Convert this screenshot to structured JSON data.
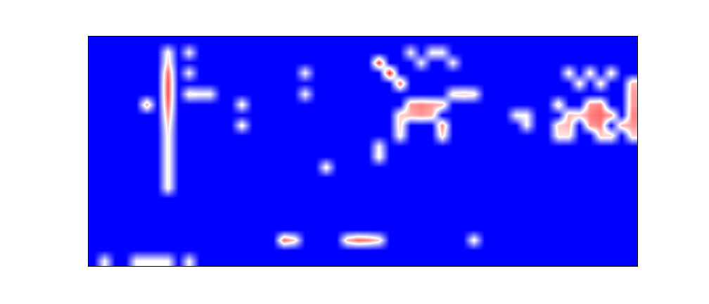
{
  "chart_data": {
    "type": "heatmap",
    "tick_labels": false,
    "grid": false,
    "zlim": [
      0,
      1
    ],
    "z": [
      [
        0,
        0,
        0,
        0,
        0,
        0,
        0,
        0,
        0,
        0,
        0,
        0,
        0,
        0,
        0,
        0,
        0,
        0,
        0,
        0,
        0,
        0,
        0,
        0,
        0,
        0,
        0,
        0,
        0,
        0,
        0,
        0,
        0,
        0,
        0,
        0,
        0,
        0,
        0,
        0,
        0,
        0,
        0,
        0,
        0,
        0,
        0,
        0,
        0,
        0,
        0,
        0
      ],
      [
        0,
        0,
        0,
        0,
        0,
        0,
        0,
        0.55,
        0,
        0.5,
        0,
        0,
        0,
        0,
        0,
        0,
        0,
        0,
        0,
        0,
        0,
        0,
        0,
        0,
        0,
        0,
        0,
        0,
        0,
        0,
        0.5,
        0,
        0.5,
        0.5,
        0,
        0,
        0,
        0,
        0,
        0,
        0,
        0,
        0,
        0,
        0,
        0,
        0,
        0,
        0,
        0,
        0,
        0
      ],
      [
        0,
        0,
        0,
        0,
        0,
        0,
        0,
        0.6,
        0,
        0,
        0,
        0,
        0,
        0,
        0,
        0,
        0,
        0,
        0,
        0,
        0,
        0,
        0,
        0,
        0,
        0,
        0,
        0.9,
        0,
        0,
        0,
        0.5,
        0,
        0,
        0.5,
        0,
        0,
        0,
        0,
        0,
        0,
        0,
        0,
        0,
        0,
        0,
        0,
        0,
        0,
        0,
        0,
        0
      ],
      [
        0,
        0,
        0,
        0,
        0,
        0,
        0,
        0.8,
        0,
        0.5,
        0,
        0,
        0,
        0,
        0,
        0,
        0,
        0,
        0,
        0,
        0.5,
        0,
        0,
        0,
        0,
        0,
        0,
        0,
        0.95,
        0,
        0,
        0,
        0,
        0,
        0,
        0,
        0,
        0,
        0,
        0,
        0,
        0,
        0,
        0,
        0,
        0.55,
        0,
        0.55,
        0,
        0.55,
        0,
        0
      ],
      [
        0,
        0,
        0,
        0,
        0,
        0,
        0,
        0.85,
        0,
        0,
        0,
        0,
        0,
        0,
        0,
        0,
        0,
        0,
        0,
        0,
        0,
        0,
        0,
        0,
        0,
        0,
        0,
        0,
        0,
        0.8,
        0,
        0,
        0,
        0,
        0,
        0,
        0,
        0,
        0,
        0,
        0,
        0,
        0,
        0,
        0,
        0,
        0.55,
        0,
        0.55,
        0,
        0,
        0.65
      ],
      [
        0,
        0,
        0,
        0,
        0,
        0,
        0,
        0.85,
        0,
        0.55,
        0.5,
        0.5,
        0,
        0,
        0,
        0,
        0,
        0,
        0,
        0,
        0.5,
        0,
        0,
        0,
        0,
        0,
        0,
        0,
        0,
        0,
        0,
        0,
        0,
        0,
        0.55,
        0.6,
        0.55,
        0,
        0,
        0,
        0,
        0,
        0,
        0,
        0,
        0,
        0,
        0,
        0,
        0,
        0,
        0.7
      ],
      [
        0,
        0,
        0,
        0,
        0,
        0.7,
        0,
        0.8,
        0,
        0,
        0,
        0,
        0,
        0,
        0.55,
        0,
        0,
        0,
        0,
        0,
        0,
        0,
        0,
        0,
        0,
        0,
        0,
        0,
        0,
        0,
        0.7,
        0.75,
        0.7,
        0.65,
        0,
        0,
        0,
        0,
        0,
        0,
        0,
        0,
        0,
        0,
        0.6,
        0,
        0,
        0.7,
        0.75,
        0,
        0,
        0.7
      ],
      [
        0,
        0,
        0,
        0,
        0,
        0,
        0,
        0.7,
        0,
        0,
        0,
        0,
        0,
        0,
        0,
        0,
        0,
        0,
        0,
        0,
        0,
        0,
        0,
        0,
        0,
        0,
        0,
        0,
        0,
        0.6,
        0.65,
        0.7,
        0.65,
        0,
        0,
        0,
        0,
        0,
        0,
        0,
        0.5,
        0.5,
        0,
        0,
        0,
        0.65,
        0.6,
        0.75,
        0.8,
        0.7,
        0,
        0.75
      ],
      [
        0,
        0,
        0,
        0,
        0,
        0,
        0,
        0.6,
        0,
        0,
        0,
        0,
        0,
        0,
        0.55,
        0,
        0,
        0,
        0,
        0,
        0,
        0,
        0,
        0,
        0,
        0,
        0,
        0,
        0,
        0.6,
        0,
        0,
        0,
        0.75,
        0,
        0,
        0,
        0,
        0,
        0,
        0,
        0.5,
        0,
        0,
        0.6,
        0.65,
        0,
        0.7,
        0.75,
        0,
        0.65,
        0.7
      ],
      [
        0,
        0,
        0,
        0,
        0,
        0,
        0,
        0.55,
        0,
        0,
        0,
        0,
        0,
        0,
        0,
        0,
        0,
        0,
        0,
        0,
        0,
        0,
        0,
        0,
        0,
        0,
        0,
        0,
        0,
        0.55,
        0,
        0,
        0,
        0.6,
        0,
        0,
        0,
        0,
        0,
        0,
        0,
        0,
        0,
        0,
        0.55,
        0.55,
        0,
        0,
        0.6,
        0.6,
        0,
        0.6
      ],
      [
        0,
        0,
        0,
        0,
        0,
        0,
        0,
        0.55,
        0,
        0,
        0,
        0,
        0,
        0,
        0,
        0,
        0,
        0,
        0,
        0,
        0,
        0,
        0,
        0,
        0,
        0,
        0,
        0.5,
        0,
        0,
        0,
        0,
        0,
        0,
        0,
        0,
        0,
        0,
        0,
        0,
        0,
        0,
        0,
        0,
        0,
        0,
        0,
        0,
        0,
        0,
        0,
        0
      ],
      [
        0,
        0,
        0,
        0,
        0,
        0,
        0,
        0.55,
        0,
        0,
        0,
        0,
        0,
        0,
        0,
        0,
        0,
        0,
        0,
        0,
        0,
        0,
        0,
        0,
        0,
        0,
        0,
        0.55,
        0,
        0,
        0,
        0,
        0,
        0,
        0,
        0,
        0,
        0,
        0,
        0,
        0,
        0,
        0,
        0,
        0,
        0,
        0,
        0,
        0,
        0,
        0,
        0
      ],
      [
        0,
        0,
        0,
        0,
        0,
        0,
        0,
        0.55,
        0,
        0,
        0,
        0,
        0,
        0,
        0,
        0,
        0,
        0,
        0,
        0,
        0,
        0,
        0.55,
        0,
        0,
        0,
        0,
        0,
        0,
        0,
        0,
        0,
        0,
        0,
        0,
        0,
        0,
        0,
        0,
        0,
        0,
        0,
        0,
        0,
        0,
        0,
        0,
        0,
        0,
        0,
        0,
        0
      ],
      [
        0,
        0,
        0,
        0,
        0,
        0,
        0,
        0.55,
        0,
        0,
        0,
        0,
        0,
        0,
        0,
        0,
        0,
        0,
        0,
        0,
        0,
        0,
        0,
        0,
        0,
        0,
        0,
        0,
        0,
        0,
        0,
        0,
        0,
        0,
        0,
        0,
        0,
        0,
        0,
        0,
        0,
        0,
        0,
        0,
        0,
        0,
        0,
        0,
        0,
        0,
        0,
        0
      ],
      [
        0,
        0,
        0,
        0,
        0,
        0,
        0,
        0.55,
        0,
        0,
        0,
        0,
        0,
        0,
        0,
        0,
        0,
        0,
        0,
        0,
        0,
        0,
        0,
        0,
        0,
        0,
        0,
        0,
        0,
        0,
        0,
        0,
        0,
        0,
        0,
        0,
        0,
        0,
        0,
        0,
        0,
        0,
        0,
        0,
        0,
        0,
        0,
        0,
        0,
        0,
        0,
        0
      ],
      [
        0,
        0,
        0,
        0,
        0,
        0,
        0,
        0,
        0,
        0,
        0,
        0,
        0,
        0,
        0,
        0,
        0,
        0,
        0,
        0,
        0,
        0,
        0,
        0,
        0,
        0,
        0,
        0,
        0,
        0,
        0,
        0,
        0,
        0,
        0,
        0,
        0,
        0,
        0,
        0,
        0,
        0,
        0,
        0,
        0,
        0,
        0,
        0,
        0,
        0,
        0,
        0
      ],
      [
        0,
        0,
        0,
        0,
        0,
        0,
        0,
        0,
        0,
        0,
        0,
        0,
        0,
        0,
        0,
        0,
        0,
        0,
        0,
        0,
        0,
        0,
        0,
        0,
        0,
        0,
        0,
        0,
        0,
        0,
        0,
        0,
        0,
        0,
        0,
        0,
        0,
        0,
        0,
        0,
        0,
        0,
        0,
        0,
        0,
        0,
        0,
        0,
        0,
        0,
        0,
        0
      ],
      [
        0,
        0,
        0,
        0,
        0,
        0,
        0,
        0,
        0,
        0,
        0,
        0,
        0,
        0,
        0,
        0,
        0,
        0,
        0,
        0,
        0,
        0,
        0,
        0,
        0,
        0,
        0,
        0,
        0,
        0,
        0,
        0,
        0,
        0,
        0,
        0,
        0,
        0,
        0,
        0,
        0,
        0,
        0,
        0,
        0,
        0,
        0,
        0,
        0,
        0,
        0,
        0
      ],
      [
        0,
        0,
        0,
        0,
        0,
        0,
        0,
        0,
        0,
        0,
        0,
        0,
        0,
        0,
        0,
        0,
        0,
        0,
        0,
        0,
        0,
        0,
        0,
        0,
        0,
        0,
        0,
        0,
        0,
        0,
        0,
        0,
        0,
        0,
        0,
        0,
        0,
        0,
        0,
        0,
        0,
        0,
        0,
        0,
        0,
        0,
        0,
        0,
        0,
        0,
        0,
        0
      ],
      [
        0,
        0,
        0,
        0,
        0,
        0,
        0,
        0,
        0,
        0,
        0,
        0,
        0,
        0,
        0,
        0,
        0,
        0,
        0.8,
        0.6,
        0,
        0,
        0,
        0,
        0.65,
        0.8,
        0.75,
        0.6,
        0,
        0,
        0,
        0,
        0,
        0,
        0,
        0,
        0.55,
        0,
        0,
        0,
        0,
        0,
        0,
        0,
        0,
        0,
        0,
        0,
        0,
        0,
        0,
        0
      ],
      [
        0,
        0,
        0,
        0,
        0,
        0,
        0,
        0,
        0,
        0,
        0,
        0,
        0,
        0,
        0,
        0,
        0,
        0,
        0,
        0,
        0,
        0,
        0,
        0,
        0,
        0,
        0,
        0,
        0,
        0,
        0,
        0,
        0,
        0,
        0,
        0,
        0,
        0,
        0,
        0,
        0,
        0,
        0,
        0,
        0,
        0,
        0,
        0,
        0,
        0,
        0,
        0
      ],
      [
        0,
        0.5,
        0,
        0,
        0.5,
        0.5,
        0.5,
        0.5,
        0,
        0.5,
        0,
        0,
        0,
        0,
        0,
        0,
        0,
        0,
        0,
        0,
        0,
        0,
        0,
        0,
        0,
        0,
        0,
        0,
        0,
        0,
        0,
        0,
        0,
        0,
        0,
        0,
        0,
        0,
        0,
        0,
        0,
        0,
        0,
        0,
        0,
        0,
        0,
        0,
        0,
        0,
        0,
        0
      ]
    ]
  }
}
